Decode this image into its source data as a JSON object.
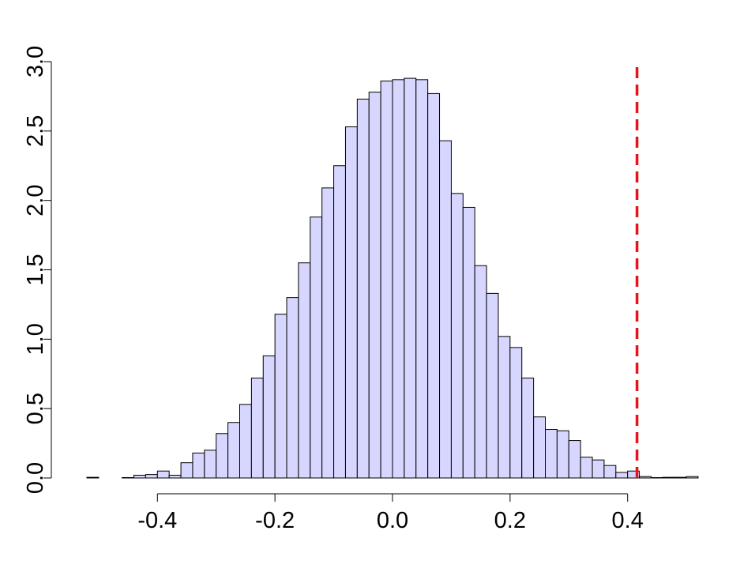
{
  "chart_data": {
    "type": "histogram",
    "bins": [
      -0.52,
      -0.5,
      -0.48,
      -0.46,
      -0.44,
      -0.42,
      -0.4,
      -0.38,
      -0.36,
      -0.34,
      -0.32,
      -0.3,
      -0.28,
      -0.26,
      -0.24,
      -0.22,
      -0.2,
      -0.18,
      -0.16,
      -0.14,
      -0.12,
      -0.1,
      -0.08,
      -0.06,
      -0.04,
      -0.02,
      0,
      0.02,
      0.04,
      0.06,
      0.08,
      0.1,
      0.12,
      0.14,
      0.16,
      0.18,
      0.2,
      0.22,
      0.24,
      0.26,
      0.28,
      0.3,
      0.32,
      0.34,
      0.36,
      0.38,
      0.4,
      0.42,
      0.44,
      0.46,
      0.48,
      0.5,
      0.52
    ],
    "values": [
      0.005,
      0,
      0,
      0.003,
      0.02,
      0.025,
      0.05,
      0.02,
      0.11,
      0.18,
      0.2,
      0.32,
      0.4,
      0.53,
      0.72,
      0.88,
      1.18,
      1.3,
      1.55,
      1.88,
      2.09,
      2.25,
      2.53,
      2.73,
      2.78,
      2.86,
      2.87,
      2.88,
      2.87,
      2.77,
      2.43,
      2.05,
      1.95,
      1.53,
      1.33,
      1.02,
      0.94,
      0.72,
      0.44,
      0.35,
      0.34,
      0.27,
      0.15,
      0.13,
      0.09,
      0.04,
      0.05,
      0.01,
      0.003,
      0.005,
      0.005,
      0.01
    ],
    "color": "#d6d6ff",
    "edge_color": "#000000",
    "vline": 0.416,
    "vline_color": "#e3141b",
    "xlim": [
      -0.52,
      0.52
    ],
    "xticks": [
      -0.4,
      -0.2,
      {
        "value": 0,
        "label": "0.0"
      },
      0.2,
      0.4
    ],
    "ylim": [
      0,
      3
    ],
    "yticks": [
      {
        "value": 0,
        "label": "0.0"
      },
      0.5,
      {
        "value": 1,
        "label": "1.0"
      },
      1.5,
      {
        "value": 2,
        "label": "2.0"
      },
      2.5,
      {
        "value": 3,
        "label": "3.0"
      }
    ]
  }
}
